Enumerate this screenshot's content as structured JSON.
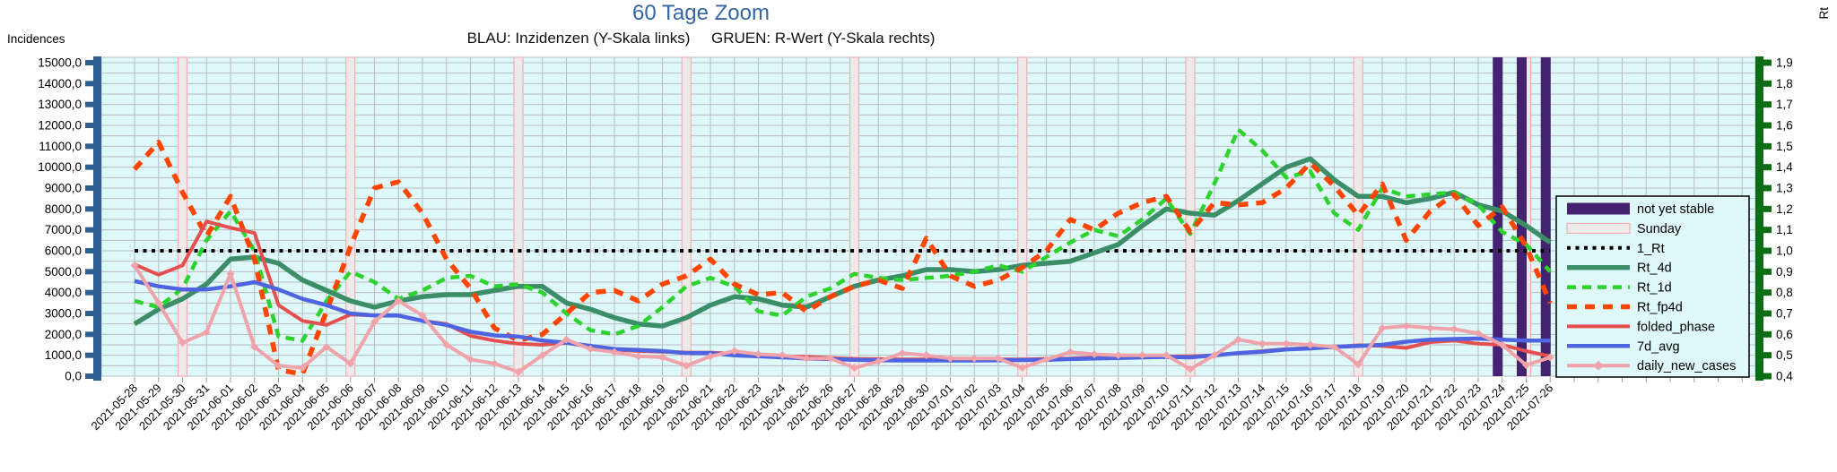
{
  "header": {
    "title": "60 Tage Zoom",
    "subtitle": "BLAU: Inzidenzen (Y-Skala links)     GRUEN: R-Wert (Y-Skala rechts)"
  },
  "axes": {
    "left_title": "Incidences",
    "right_title": "Rt",
    "left_ticks": [
      "0,0",
      "1000,0",
      "2000,0",
      "3000,0",
      "4000,0",
      "5000,0",
      "6000,0",
      "7000,0",
      "8000,0",
      "9000,0",
      "10000,0",
      "11000,0",
      "12000,0",
      "13000,0",
      "14000,0",
      "15000,0"
    ],
    "right_ticks": [
      "0,4",
      "0,5",
      "0,6",
      "0,7",
      "0,8",
      "0,9",
      "1,0",
      "1,1",
      "1,2",
      "1,3",
      "1,4",
      "1,5",
      "1,6",
      "1,7",
      "1,8",
      "1,9"
    ],
    "left_min": 0,
    "left_max": 15000,
    "right_min": 0.4,
    "right_max": 1.9
  },
  "colors": {
    "title": "#3465a4",
    "plot_bg": "#dff8fa",
    "grid": "#b7bdbf",
    "left_axis_bar": "#2d5f92",
    "right_axis_bar": "#0c6e14",
    "sunday_fill": "#edeaea",
    "sunday_border": "#f2aeb4",
    "not_yet_stable": "#432270",
    "one_rt": "#000000",
    "rt_4d": "#3b8e68",
    "rt_1d": "#2cd32c",
    "rt_fp4d": "#ff4500",
    "folded_phase": "#e64f4f",
    "seven_d_avg": "#4f64e0",
    "daily_new_cases": "#f0a3ab"
  },
  "chart_data": {
    "type": "line",
    "title": "60 Tage Zoom",
    "xlabel": "",
    "ylabel_left": "Incidences",
    "ylabel_right": "Rt",
    "ylim_left": [
      0,
      15000
    ],
    "ylim_right": [
      0.4,
      1.9
    ],
    "grid": true,
    "legend_position": "right",
    "x": [
      "2021-05-28",
      "2021-05-29",
      "2021-05-30",
      "2021-05-31",
      "2021-06-01",
      "2021-06-02",
      "2021-06-03",
      "2021-06-04",
      "2021-06-05",
      "2021-06-06",
      "2021-06-07",
      "2021-06-08",
      "2021-06-09",
      "2021-06-10",
      "2021-06-11",
      "2021-06-12",
      "2021-06-13",
      "2021-06-14",
      "2021-06-15",
      "2021-06-16",
      "2021-06-17",
      "2021-06-18",
      "2021-06-19",
      "2021-06-20",
      "2021-06-21",
      "2021-06-22",
      "2021-06-23",
      "2021-06-24",
      "2021-06-25",
      "2021-06-26",
      "2021-06-27",
      "2021-06-28",
      "2021-06-29",
      "2021-06-30",
      "2021-07-01",
      "2021-07-02",
      "2021-07-03",
      "2021-07-04",
      "2021-07-05",
      "2021-07-06",
      "2021-07-07",
      "2021-07-08",
      "2021-07-09",
      "2021-07-10",
      "2021-07-11",
      "2021-07-12",
      "2021-07-13",
      "2021-07-14",
      "2021-07-15",
      "2021-07-16",
      "2021-07-17",
      "2021-07-18",
      "2021-07-19",
      "2021-07-20",
      "2021-07-21",
      "2021-07-22",
      "2021-07-23",
      "2021-07-24",
      "2021-07-25",
      "2021-07-26"
    ],
    "sunday_indices": [
      2,
      9,
      16,
      23,
      30,
      37,
      44,
      51,
      58
    ],
    "not_yet_stable_indices": [
      57,
      58,
      59
    ],
    "series": [
      {
        "name": "1_Rt",
        "axis": "right",
        "style": "dotted",
        "colorkey": "one_rt",
        "width": 4,
        "values": [
          1,
          1,
          1,
          1,
          1,
          1,
          1,
          1,
          1,
          1,
          1,
          1,
          1,
          1,
          1,
          1,
          1,
          1,
          1,
          1,
          1,
          1,
          1,
          1,
          1,
          1,
          1,
          1,
          1,
          1,
          1,
          1,
          1,
          1,
          1,
          1,
          1,
          1,
          1,
          1,
          1,
          1,
          1,
          1,
          1,
          1,
          1,
          1,
          1,
          1,
          1,
          1,
          1,
          1,
          1,
          1,
          1,
          1,
          1,
          1
        ]
      },
      {
        "name": "Rt_4d",
        "axis": "right",
        "style": "solid",
        "colorkey": "rt_4d",
        "width": 5.5,
        "values": [
          0.65,
          0.72,
          0.77,
          0.84,
          0.96,
          0.97,
          0.94,
          0.86,
          0.81,
          0.76,
          0.73,
          0.76,
          0.78,
          0.79,
          0.79,
          0.81,
          0.83,
          0.83,
          0.75,
          0.72,
          0.68,
          0.65,
          0.64,
          0.68,
          0.74,
          0.78,
          0.77,
          0.74,
          0.73,
          0.78,
          0.83,
          0.86,
          0.88,
          0.91,
          0.91,
          0.9,
          0.91,
          0.93,
          0.94,
          0.95,
          0.99,
          1.03,
          1.12,
          1.2,
          1.18,
          1.17,
          1.24,
          1.32,
          1.4,
          1.44,
          1.34,
          1.26,
          1.26,
          1.23,
          1.25,
          1.28,
          1.22,
          1.19,
          1.12,
          1.04
        ]
      },
      {
        "name": "Rt_1d",
        "axis": "right",
        "style": "dashed",
        "colorkey": "rt_1d",
        "width": 4.5,
        "values": [
          0.76,
          0.73,
          0.82,
          1.05,
          1.19,
          1.0,
          0.59,
          0.57,
          0.76,
          0.9,
          0.85,
          0.77,
          0.81,
          0.87,
          0.88,
          0.83,
          0.84,
          0.8,
          0.7,
          0.62,
          0.6,
          0.64,
          0.73,
          0.83,
          0.87,
          0.83,
          0.71,
          0.69,
          0.78,
          0.82,
          0.89,
          0.87,
          0.86,
          0.87,
          0.88,
          0.9,
          0.93,
          0.9,
          0.97,
          1.04,
          1.1,
          1.07,
          1.15,
          1.25,
          1.08,
          1.32,
          1.58,
          1.48,
          1.35,
          1.38,
          1.18,
          1.1,
          1.3,
          1.26,
          1.27,
          1.28,
          1.22,
          1.09,
          1.03,
          0.9
        ]
      },
      {
        "name": "Rt_fp4d",
        "axis": "right",
        "style": "dashed",
        "colorkey": "rt_fp4d",
        "width": 5.5,
        "values": [
          1.39,
          1.52,
          1.28,
          1.07,
          1.26,
          0.96,
          0.43,
          0.41,
          0.71,
          1.02,
          1.3,
          1.33,
          1.18,
          0.96,
          0.82,
          0.63,
          0.57,
          0.6,
          0.7,
          0.8,
          0.81,
          0.76,
          0.84,
          0.88,
          0.96,
          0.84,
          0.79,
          0.8,
          0.71,
          0.78,
          0.83,
          0.86,
          0.82,
          1.06,
          0.88,
          0.83,
          0.86,
          0.92,
          1.0,
          1.15,
          1.1,
          1.18,
          1.23,
          1.26,
          1.09,
          1.23,
          1.22,
          1.23,
          1.3,
          1.42,
          1.31,
          1.17,
          1.32,
          1.05,
          1.19,
          1.27,
          1.12,
          1.21,
          1.02,
          0.75
        ]
      },
      {
        "name": "folded_phase",
        "axis": "left",
        "style": "solid",
        "colorkey": "folded_phase",
        "width": 4,
        "values": [
          5350,
          4850,
          5300,
          7400,
          7100,
          6850,
          3400,
          2650,
          2450,
          2950,
          2900,
          2900,
          2650,
          2500,
          1930,
          1700,
          1550,
          1500,
          1600,
          1400,
          1270,
          1200,
          1170,
          1130,
          1130,
          1070,
          980,
          950,
          930,
          870,
          830,
          820,
          800,
          800,
          800,
          800,
          800,
          800,
          830,
          850,
          900,
          950,
          970,
          950,
          950,
          1000,
          1100,
          1200,
          1300,
          1350,
          1400,
          1480,
          1450,
          1350,
          1630,
          1700,
          1550,
          1500,
          1200,
          950
        ]
      },
      {
        "name": "7d_avg",
        "axis": "left",
        "style": "solid",
        "colorkey": "seven_d_avg",
        "width": 4.5,
        "values": [
          4550,
          4300,
          4150,
          4150,
          4300,
          4500,
          4150,
          3700,
          3400,
          3000,
          2900,
          2900,
          2650,
          2450,
          2130,
          1950,
          1900,
          1700,
          1600,
          1450,
          1300,
          1250,
          1200,
          1100,
          1100,
          1000,
          950,
          900,
          850,
          820,
          780,
          760,
          750,
          750,
          750,
          750,
          760,
          770,
          780,
          820,
          850,
          870,
          900,
          920,
          900,
          1000,
          1100,
          1170,
          1280,
          1330,
          1400,
          1450,
          1500,
          1650,
          1750,
          1780,
          1800,
          1750,
          1700,
          1700
        ]
      },
      {
        "name": "daily_new_cases",
        "axis": "left",
        "style": "solid-marker",
        "colorkey": "daily_new_cases",
        "width": 4,
        "values": [
          5300,
          3500,
          1600,
          2100,
          4900,
          1400,
          500,
          400,
          1400,
          600,
          2600,
          3600,
          2900,
          1500,
          800,
          600,
          200,
          1000,
          1750,
          1300,
          1150,
          950,
          900,
          500,
          950,
          1200,
          1050,
          1000,
          850,
          850,
          400,
          700,
          1100,
          1000,
          850,
          850,
          850,
          400,
          800,
          1150,
          1050,
          1000,
          1000,
          1000,
          340,
          1000,
          1750,
          1550,
          1550,
          1500,
          1400,
          560,
          2300,
          2400,
          2300,
          2250,
          2050,
          1500,
          530,
          900
        ]
      }
    ],
    "legend": [
      {
        "label": "not yet stable",
        "swatch": "bar",
        "colorkey": "not_yet_stable"
      },
      {
        "label": "Sunday",
        "swatch": "band",
        "colorkey": "sunday_fill",
        "borderkey": "sunday_border"
      },
      {
        "label": "1_Rt",
        "swatch": "dotted",
        "colorkey": "one_rt",
        "width": 4
      },
      {
        "label": "Rt_4d",
        "swatch": "solid",
        "colorkey": "rt_4d",
        "width": 5.5
      },
      {
        "label": "Rt_1d",
        "swatch": "dashed",
        "colorkey": "rt_1d",
        "width": 4.5
      },
      {
        "label": "Rt_fp4d",
        "swatch": "dashed",
        "colorkey": "rt_fp4d",
        "width": 5.5
      },
      {
        "label": "folded_phase",
        "swatch": "solid",
        "colorkey": "folded_phase",
        "width": 4
      },
      {
        "label": "7d_avg",
        "swatch": "solid",
        "colorkey": "seven_d_avg",
        "width": 4.5
      },
      {
        "label": "daily_new_cases",
        "swatch": "solid-marker",
        "colorkey": "daily_new_cases",
        "width": 4
      }
    ]
  }
}
